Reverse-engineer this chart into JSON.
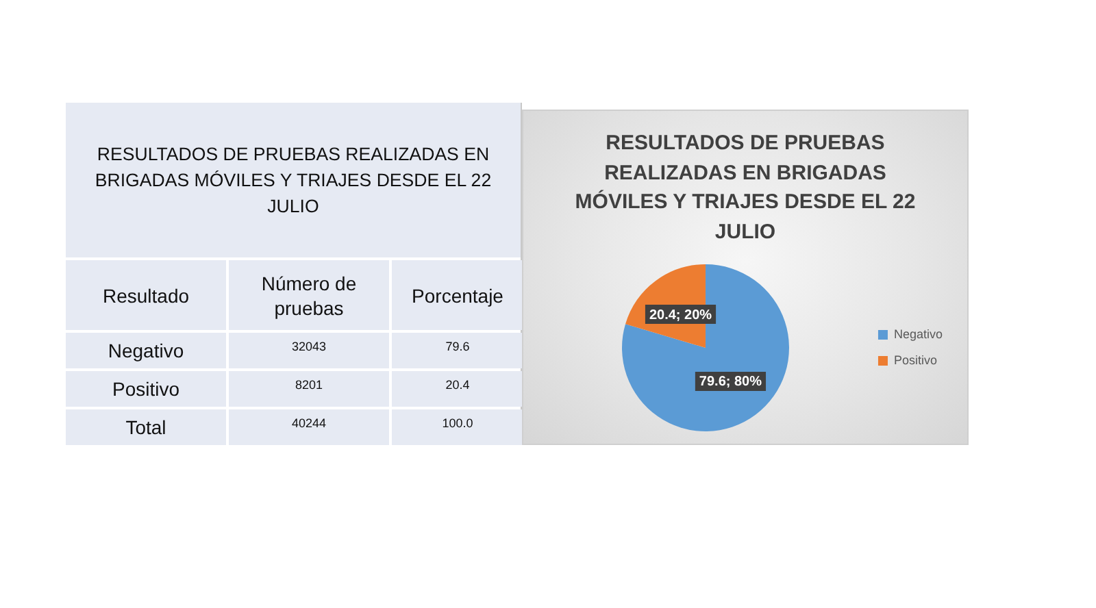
{
  "chart_data": [
    {
      "type": "other",
      "title": "RESULTADOS DE PRUEBAS REALIZADAS EN BRIGADAS MÓVILES Y TRIAJES DESDE EL 22 JULIO",
      "annotations": [
        "Resultado",
        "Número de pruebas",
        "Porcentaje",
        "Negativo",
        "32043",
        "79.6",
        "Positivo",
        "8201",
        "20.4",
        "Total",
        "40244",
        "100.0"
      ]
    },
    {
      "type": "pie",
      "title": "RESULTADOS DE PRUEBAS REALIZADAS EN BRIGADAS MÓVILES Y TRIAJES DESDE EL 22 JULIO",
      "categories": [
        "Negativo",
        "Positivo"
      ],
      "values": [
        79.6,
        20.4
      ],
      "colors": [
        "#5b9bd5",
        "#ed7d31"
      ],
      "value_labels": [
        "79.6; 80%",
        "20.4; 20%"
      ],
      "legend": "right"
    }
  ]
}
